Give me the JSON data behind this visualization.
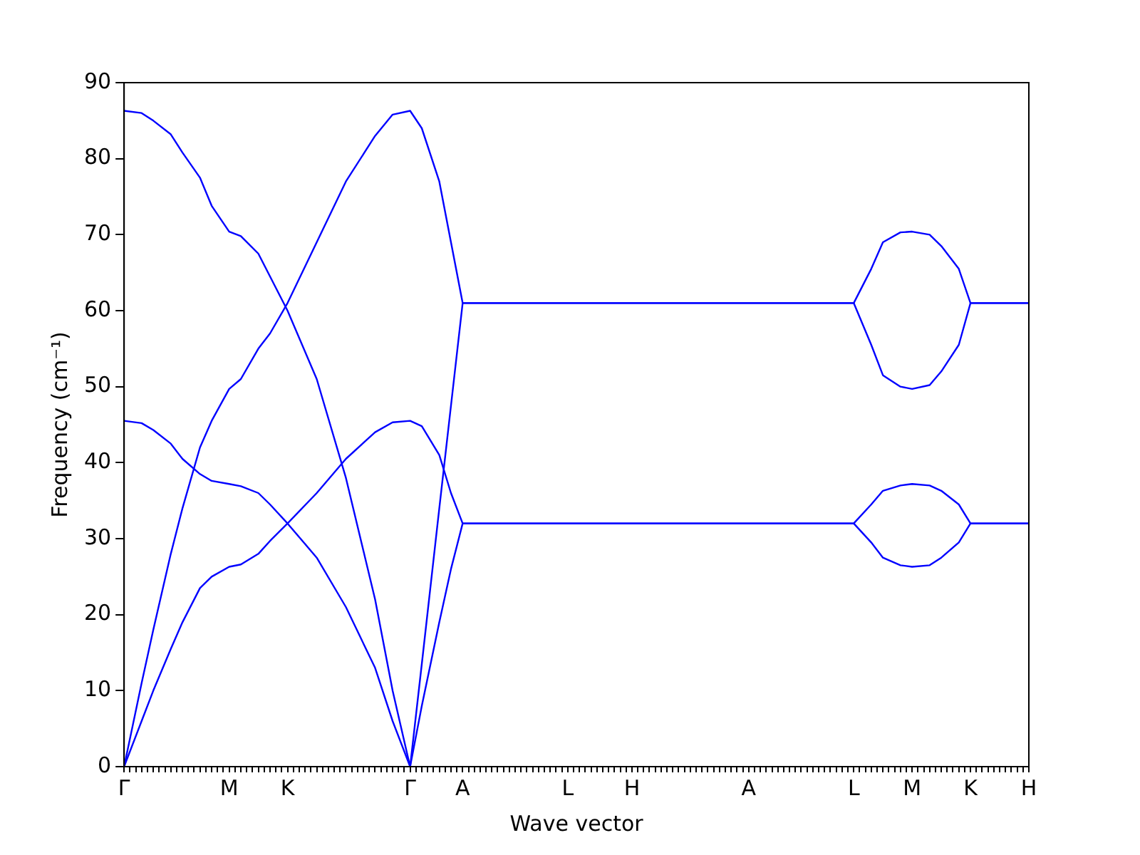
{
  "chart_data": {
    "type": "line",
    "xlabel": "Wave vector",
    "ylabel": "Frequency (cm⁻¹)",
    "categories": [
      "Γ",
      null,
      null,
      null,
      null,
      null,
      null,
      null,
      null,
      null,
      null,
      null,
      null,
      null,
      null,
      null,
      null,
      null,
      "M",
      null,
      null,
      null,
      null,
      null,
      null,
      null,
      null,
      null,
      "K",
      null,
      null,
      null,
      null,
      null,
      null,
      null,
      null,
      null,
      null,
      null,
      null,
      null,
      null,
      null,
      null,
      null,
      null,
      null,
      null,
      "Γ",
      null,
      null,
      null,
      null,
      null,
      null,
      null,
      null,
      "A",
      null,
      null,
      null,
      null,
      null,
      null,
      null,
      null,
      null,
      null,
      null,
      null,
      null,
      null,
      null,
      null,
      null,
      "L",
      null,
      null,
      null,
      null,
      null,
      null,
      null,
      null,
      null,
      null,
      "H",
      null,
      null,
      null,
      null,
      null,
      null,
      null,
      null,
      null,
      null,
      null,
      null,
      null,
      null,
      null,
      null,
      null,
      null,
      null,
      "A",
      null,
      null,
      null,
      null,
      null,
      null,
      null,
      null,
      null,
      null,
      null,
      null,
      null,
      null,
      null,
      null,
      null,
      "L",
      null,
      null,
      null,
      null,
      null,
      null,
      null,
      null,
      null,
      "M",
      null,
      null,
      null,
      null,
      null,
      null,
      null,
      null,
      null,
      "K",
      null,
      null,
      null,
      null,
      null,
      null,
      null,
      null,
      null,
      "H"
    ],
    "ylim": [
      0,
      90
    ],
    "yticks": [
      0,
      10,
      20,
      30,
      40,
      50,
      60,
      70,
      80,
      90
    ],
    "grid": false,
    "legend": false,
    "marker": "none",
    "line_style": "solid",
    "series": [
      {
        "color": "#0000ff",
        "values": [
          86.3,
          null,
          null,
          86.0,
          null,
          85.0,
          null,
          null,
          83.2,
          null,
          80.8,
          null,
          null,
          77.5,
          null,
          73.8,
          null,
          null,
          70.4,
          null,
          69.8,
          null,
          null,
          67.5,
          null,
          64.5,
          null,
          null,
          60,
          null,
          null,
          null,
          null,
          51,
          null,
          null,
          null,
          null,
          38,
          null,
          null,
          null,
          null,
          22,
          null,
          null,
          10,
          null,
          null,
          0,
          null,
          13.5,
          null,
          null,
          34,
          null,
          47.5,
          null,
          61,
          null,
          null,
          null,
          null,
          null,
          null,
          null,
          null,
          null,
          null,
          null,
          null,
          null,
          null,
          null,
          null,
          null,
          null,
          null,
          null,
          null,
          null,
          null,
          null,
          null,
          null,
          null,
          null,
          null,
          null,
          null,
          null,
          null,
          null,
          null,
          null,
          null,
          null,
          null,
          null,
          null,
          null,
          null,
          null,
          null,
          null,
          null,
          null,
          null,
          null,
          null,
          null,
          null,
          null,
          null,
          null,
          null,
          null,
          null,
          null,
          null,
          null,
          null,
          null,
          null,
          null,
          61,
          null,
          null,
          55.5,
          null,
          51.5,
          null,
          null,
          50,
          null,
          49.7,
          null,
          null,
          50.2,
          null,
          52,
          null,
          null,
          55.5,
          null,
          61,
          null,
          null,
          null,
          null,
          null,
          null,
          null,
          null,
          null,
          61
        ]
      },
      {
        "color": "#0000ff",
        "values": [
          0,
          null,
          null,
          11,
          null,
          18,
          null,
          null,
          28,
          null,
          34,
          null,
          null,
          42,
          null,
          45.5,
          null,
          null,
          49.7,
          null,
          51,
          null,
          null,
          55,
          null,
          57,
          null,
          null,
          61,
          null,
          null,
          null,
          null,
          69,
          null,
          null,
          null,
          null,
          77,
          null,
          null,
          null,
          null,
          83,
          null,
          null,
          85.8,
          null,
          null,
          86.3,
          null,
          84,
          null,
          null,
          77,
          null,
          69,
          null,
          61,
          null,
          null,
          null,
          null,
          null,
          null,
          null,
          null,
          null,
          null,
          null,
          null,
          null,
          null,
          null,
          null,
          null,
          null,
          null,
          null,
          null,
          null,
          null,
          null,
          null,
          null,
          null,
          null,
          null,
          null,
          null,
          null,
          null,
          null,
          null,
          null,
          null,
          null,
          null,
          null,
          null,
          null,
          null,
          null,
          null,
          null,
          null,
          null,
          null,
          null,
          null,
          null,
          null,
          null,
          null,
          null,
          null,
          null,
          null,
          null,
          null,
          null,
          null,
          null,
          null,
          null,
          61,
          null,
          null,
          65.5,
          null,
          69,
          null,
          null,
          70.3,
          null,
          70.4,
          null,
          null,
          70,
          null,
          68.5,
          null,
          null,
          65.5,
          null,
          61,
          null,
          null,
          null,
          null,
          null,
          null,
          null,
          null,
          null,
          61
        ]
      },
      {
        "color": "#0000ff",
        "values": [
          45.5,
          null,
          null,
          45.2,
          null,
          44.3,
          null,
          null,
          42.5,
          null,
          40.5,
          null,
          null,
          38.5,
          null,
          37.6,
          null,
          null,
          37.2,
          null,
          36.9,
          null,
          null,
          36,
          null,
          34.5,
          null,
          null,
          32,
          null,
          null,
          null,
          null,
          27.5,
          null,
          null,
          null,
          null,
          21,
          null,
          null,
          null,
          null,
          13,
          null,
          null,
          6,
          null,
          null,
          0,
          null,
          8,
          null,
          null,
          19,
          null,
          26,
          null,
          32,
          null,
          null,
          null,
          null,
          null,
          null,
          null,
          null,
          null,
          null,
          null,
          null,
          null,
          null,
          null,
          null,
          null,
          null,
          null,
          null,
          null,
          null,
          null,
          null,
          null,
          null,
          null,
          null,
          null,
          null,
          null,
          null,
          null,
          null,
          null,
          null,
          null,
          null,
          null,
          null,
          null,
          null,
          null,
          null,
          null,
          null,
          null,
          null,
          null,
          null,
          null,
          null,
          null,
          null,
          null,
          null,
          null,
          null,
          null,
          null,
          null,
          null,
          null,
          null,
          null,
          null,
          32,
          null,
          null,
          34.5,
          null,
          36.3,
          null,
          null,
          37,
          null,
          37.2,
          null,
          null,
          37,
          null,
          36.3,
          null,
          null,
          34.5,
          null,
          32,
          null,
          null,
          null,
          null,
          null,
          null,
          null,
          null,
          null,
          32
        ]
      },
      {
        "color": "#0000ff",
        "values": [
          0,
          null,
          null,
          6,
          null,
          10,
          null,
          null,
          15.5,
          null,
          19,
          null,
          null,
          23.5,
          null,
          25,
          null,
          null,
          26.3,
          null,
          26.6,
          null,
          null,
          28,
          null,
          29.7,
          null,
          null,
          32,
          null,
          null,
          null,
          null,
          36,
          null,
          null,
          null,
          null,
          40.5,
          null,
          null,
          null,
          null,
          44,
          null,
          null,
          45.3,
          null,
          null,
          45.5,
          null,
          44.8,
          null,
          null,
          41,
          null,
          36,
          null,
          32,
          null,
          null,
          null,
          null,
          null,
          null,
          null,
          null,
          null,
          null,
          null,
          null,
          null,
          null,
          null,
          null,
          null,
          null,
          null,
          null,
          null,
          null,
          null,
          null,
          null,
          null,
          null,
          null,
          null,
          null,
          null,
          null,
          null,
          null,
          null,
          null,
          null,
          null,
          null,
          null,
          null,
          null,
          null,
          null,
          null,
          null,
          null,
          null,
          null,
          null,
          null,
          null,
          null,
          null,
          null,
          null,
          null,
          null,
          null,
          null,
          null,
          null,
          null,
          null,
          null,
          null,
          32,
          null,
          null,
          29.5,
          null,
          27.5,
          null,
          null,
          26.5,
          null,
          26.3,
          null,
          null,
          26.5,
          null,
          27.5,
          null,
          null,
          29.5,
          null,
          32,
          null,
          null,
          null,
          null,
          null,
          null,
          null,
          null,
          null,
          32
        ]
      }
    ]
  }
}
